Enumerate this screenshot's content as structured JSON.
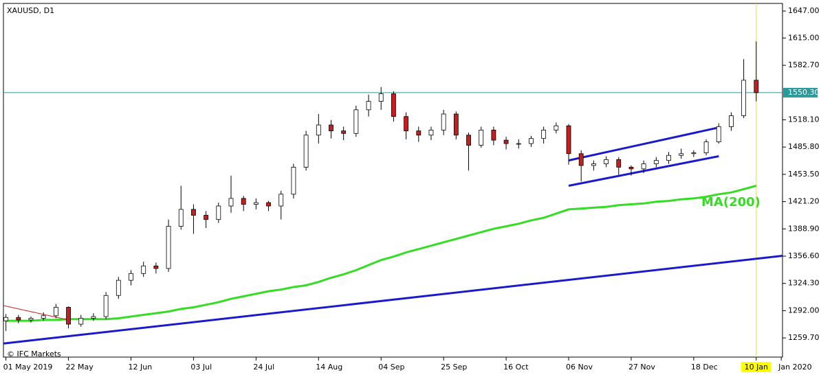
{
  "chart_data": {
    "type": "candlestick",
    "title": "XAUUSD, D1",
    "credit": "© IFC Markets",
    "categories": [
      "01 May 2019",
      null,
      null,
      null,
      null,
      "22 May",
      null,
      null,
      null,
      null,
      "12 Jun",
      null,
      null,
      null,
      null,
      "03 Jul",
      null,
      null,
      null,
      null,
      "24 Jul",
      null,
      null,
      null,
      null,
      "14 Aug",
      null,
      null,
      null,
      null,
      "04 Sep",
      null,
      null,
      null,
      null,
      "25 Sep",
      null,
      null,
      null,
      null,
      "16 Oct",
      null,
      null,
      null,
      null,
      "06 Nov",
      null,
      null,
      null,
      null,
      "27 Nov",
      null,
      null,
      null,
      null,
      "18 Dec",
      null,
      null,
      null,
      null,
      "10 Jan",
      null,
      "Jan 2020"
    ],
    "open": [
      1280,
      1284,
      1281,
      1283,
      1286,
      1296,
      1276,
      1283,
      1285,
      1310,
      1328,
      1336,
      1345,
      1342,
      1392,
      1412,
      1405,
      1400,
      1416,
      1425,
      1418,
      1420,
      1416,
      1430,
      1462,
      1500,
      1512,
      1505,
      1502,
      1530,
      1540,
      1549,
      1522,
      1505,
      1500,
      1506,
      1525,
      1500,
      1488,
      1506,
      1494,
      1490,
      1490,
      1496,
      1506,
      1511,
      1478,
      1464,
      1466,
      1471,
      1462,
      1460,
      1466,
      1470,
      1476,
      1478,
      1479,
      1492,
      1510,
      1523,
      1565,
      null,
      null
    ],
    "high": [
      1288,
      1287,
      1285,
      1290,
      1300,
      1297,
      1287,
      1289,
      1314,
      1332,
      1340,
      1350,
      1349,
      1400,
      1440,
      1418,
      1410,
      1420,
      1452,
      1428,
      1425,
      1422,
      1434,
      1466,
      1505,
      1525,
      1518,
      1510,
      1535,
      1548,
      1557,
      1552,
      1527,
      1510,
      1510,
      1530,
      1528,
      1503,
      1510,
      1510,
      1498,
      1495,
      1499,
      1510,
      1515,
      1513,
      1482,
      1470,
      1475,
      1474,
      1464,
      1470,
      1474,
      1480,
      1484,
      1482,
      1495,
      1514,
      1527,
      1590,
      1611,
      null,
      null
    ],
    "low": [
      1268,
      1277,
      1278,
      1280,
      1283,
      1271,
      1273,
      1280,
      1282,
      1306,
      1322,
      1332,
      1336,
      1338,
      1388,
      1383,
      1390,
      1396,
      1408,
      1410,
      1412,
      1410,
      1400,
      1425,
      1458,
      1490,
      1496,
      1494,
      1498,
      1522,
      1530,
      1516,
      1495,
      1492,
      1494,
      1500,
      1495,
      1458,
      1485,
      1488,
      1483,
      1484,
      1486,
      1490,
      1502,
      1465,
      1445,
      1458,
      1462,
      1453,
      1452,
      1455,
      1462,
      1466,
      1472,
      1474,
      1476,
      1490,
      1505,
      1520,
      1540,
      null,
      null
    ],
    "close": [
      1284,
      1281,
      1283,
      1286,
      1296,
      1276,
      1283,
      1285,
      1310,
      1328,
      1336,
      1345,
      1342,
      1392,
      1412,
      1405,
      1400,
      1416,
      1425,
      1418,
      1420,
      1416,
      1430,
      1462,
      1500,
      1512,
      1505,
      1502,
      1530,
      1540,
      1549,
      1522,
      1505,
      1500,
      1506,
      1525,
      1500,
      1488,
      1506,
      1494,
      1490,
      1490,
      1496,
      1506,
      1511,
      1478,
      1464,
      1466,
      1471,
      1462,
      1460,
      1466,
      1470,
      1476,
      1478,
      1479,
      1492,
      1510,
      1523,
      1565,
      1550.3,
      null,
      null
    ],
    "up_color": "#ffffff",
    "down_color": "#c41e1e",
    "series": [
      {
        "name": "MA(200)",
        "color": "#33dd22",
        "values": [
          1280,
          1280,
          1280,
          1281,
          1281,
          1282,
          1282,
          1282,
          1282,
          1283,
          1285,
          1287,
          1289,
          1291,
          1294,
          1296,
          1299,
          1302,
          1306,
          1309,
          1312,
          1315,
          1317,
          1320,
          1322,
          1326,
          1331,
          1335,
          1340,
          1346,
          1352,
          1356,
          1361,
          1365,
          1369,
          1373,
          1377,
          1381,
          1385,
          1389,
          1392,
          1395,
          1399,
          1402,
          1407,
          1412,
          1413,
          1414,
          1415,
          1417,
          1418,
          1419,
          1421,
          1422,
          1424,
          1425,
          1427,
          1430,
          1432,
          1436,
          1440,
          null,
          null
        ]
      }
    ],
    "trendlines": [
      {
        "color": "#1a1acc",
        "x": [
          -0.2,
          62.1
        ],
        "y": [
          1253,
          1357
        ]
      },
      {
        "color": "#1a1acc",
        "x": [
          45,
          57
        ],
        "y": [
          1470,
          1509
        ]
      },
      {
        "color": "#1a1acc",
        "x": [
          45,
          57
        ],
        "y": [
          1440,
          1475
        ]
      },
      {
        "color": "#cc2222",
        "x": [
          -0.2,
          5
        ],
        "y": [
          1298,
          1281
        ]
      }
    ],
    "price_line": {
      "value": 1550.3,
      "label": "1550.30",
      "color": "#2a9a9a"
    },
    "xlim": [
      -0.2,
      62.1
    ],
    "ylim": [
      1237,
      1656
    ],
    "yticks": [
      {
        "value": 1647,
        "label": "1647.00"
      },
      {
        "value": 1615,
        "label": "1615.00"
      },
      {
        "value": 1582.7,
        "label": "1582.70"
      },
      {
        "value": 1518.1,
        "label": "1518.10"
      },
      {
        "value": 1485.8,
        "label": "1485.80"
      },
      {
        "value": 1453.5,
        "label": "1453.50"
      },
      {
        "value": 1421.2,
        "label": "1421.20"
      },
      {
        "value": 1388.9,
        "label": "1388.90"
      },
      {
        "value": 1356.6,
        "label": "1356.60"
      },
      {
        "value": 1324.3,
        "label": "1324.30"
      },
      {
        "value": 1292,
        "label": "1292.00"
      },
      {
        "value": 1259.7,
        "label": "1259.70"
      }
    ]
  }
}
